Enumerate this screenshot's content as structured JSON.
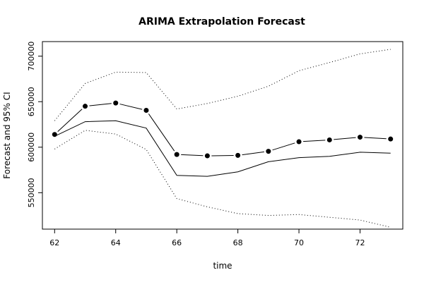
{
  "chart_data": {
    "type": "line",
    "title": "ARIMA Extrapolation Forecast",
    "xlabel": "time",
    "ylabel": "Forecast and 95% CI",
    "xlim": [
      61.6,
      73.4
    ],
    "ylim": [
      510000,
      716000
    ],
    "x_ticks": [
      62,
      64,
      66,
      68,
      70,
      72
    ],
    "x_tick_labels": [
      "62",
      "64",
      "66",
      "68",
      "70",
      "72"
    ],
    "y_ticks": [
      550000,
      600000,
      650000,
      700000
    ],
    "y_tick_labels": [
      "550000",
      "600000",
      "650000",
      "700000"
    ],
    "grid": false,
    "x": [
      62,
      63,
      64,
      65,
      66,
      67,
      68,
      69,
      70,
      71,
      72,
      73
    ],
    "series": [
      {
        "style": "line-with-points",
        "values": [
          614000,
          645000,
          648500,
          640500,
          592000,
          590500,
          591000,
          595500,
          606000,
          608000,
          611000,
          609000
        ]
      },
      {
        "style": "solid",
        "values": [
          612000,
          628000,
          629000,
          621000,
          569000,
          568000,
          573000,
          584000,
          588500,
          590000,
          594500,
          593500
        ]
      },
      {
        "style": "dotted",
        "values": [
          629000,
          670000,
          682500,
          682000,
          642000,
          648000,
          656000,
          667000,
          684000,
          693000,
          702500,
          707500
        ]
      },
      {
        "style": "dotted",
        "values": [
          598000,
          618500,
          614500,
          597500,
          543500,
          534500,
          527000,
          525000,
          526000,
          523000,
          520000,
          512000
        ]
      }
    ]
  }
}
